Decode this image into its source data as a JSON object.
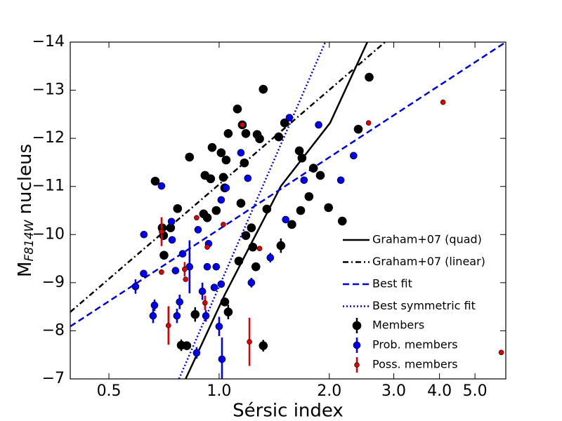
{
  "chart_data": {
    "type": "scatter",
    "xlabel": "Sérsic index",
    "ylabel": [
      "M",
      "F814W",
      "nucleus"
    ],
    "xscale": "log",
    "xlim": [
      0.392,
      6.07
    ],
    "ylim": [
      -7,
      -14
    ],
    "xticks": [
      0.5,
      {
        "value": 1,
        "label": "1.0"
      },
      {
        "value": 2,
        "label": "2.0"
      },
      {
        "value": 3,
        "label": "3.0"
      },
      {
        "value": 4,
        "label": "4.0"
      },
      {
        "value": 5,
        "label": "5.0"
      }
    ],
    "yticks": [
      {
        "value": -7,
        "label": "−7"
      },
      {
        "value": -8,
        "label": "−8"
      },
      {
        "value": -9,
        "label": "−9"
      },
      {
        "value": -10,
        "label": "−10"
      },
      {
        "value": -11,
        "label": "−11"
      },
      {
        "value": -12,
        "label": "−12"
      },
      {
        "value": -13,
        "label": "−13"
      },
      {
        "value": -14,
        "label": "−14"
      }
    ],
    "legend": "lower right",
    "lines": [
      {
        "name": "Graham+07 (quad)",
        "color": "#000000",
        "style": "solid",
        "x": [
          0.81,
          1.036,
          1.476,
          2.01,
          2.54
        ],
        "values": [
          -7,
          -8.75,
          -11.01,
          -12.32,
          -14
        ]
      },
      {
        "name": "Graham+07 (linear)",
        "color": "#000000",
        "style": "dashdot",
        "x": [
          0.392,
          2.84
        ],
        "values": [
          -8.39,
          -14
        ]
      },
      {
        "name": "Best fit",
        "color": "#0000dd",
        "style": "dashed",
        "x": [
          0.392,
          6.07
        ],
        "values": [
          -8.09,
          -14
        ]
      },
      {
        "name": "Best symmetric fit",
        "color": "#0000dd",
        "style": "dotted",
        "x": [
          0.777,
          1.95
        ],
        "values": [
          -7,
          -14
        ]
      }
    ],
    "series": [
      {
        "name": "Members",
        "color": "#000000",
        "size": 6,
        "x": [
          0.669,
          0.699,
          0.737,
          0.77,
          0.705,
          0.707,
          0.83,
          0.788,
          0.816,
          0.86,
          0.907,
          0.928,
          0.957,
          1.013,
          1.027,
          1.036,
          1.045,
          1.059,
          0.948,
          0.915,
          1.122,
          1.157,
          1.183,
          1.147,
          1.172,
          1.32,
          1.35,
          1.27,
          1.29,
          1.236,
          1.26,
          1.32,
          1.475,
          1.183,
          1.132,
          1.059,
          1.036,
          1.455,
          1.51,
          1.656,
          1.684,
          1.76,
          1.81,
          1.67,
          1.58,
          1.89,
          1.99,
          2.17,
          2.4,
          2.57,
          1.225,
          0.982
        ],
        "values": [
          -11.11,
          -10.14,
          -10.14,
          -10.54,
          -9.98,
          -9.57,
          -11.61,
          -7.7,
          -7.69,
          -8.34,
          -10.43,
          -10.35,
          -11.81,
          -11.7,
          -11.19,
          -10.97,
          -11.55,
          -12.1,
          -11.16,
          -11.23,
          -12.61,
          -12.28,
          -12.1,
          -10.65,
          -11.49,
          -13.02,
          -10.53,
          -12.08,
          -11.99,
          -9.74,
          -9.33,
          -7.69,
          -9.77,
          -9.98,
          -9.45,
          -8.39,
          -8.6,
          -12.03,
          -12.32,
          -11.74,
          -11.59,
          -10.79,
          -11.38,
          -10.5,
          -10.21,
          -11.23,
          -10.56,
          -10.28,
          -12.19,
          -13.27,
          -10.14,
          -10.5
        ],
        "errors": [
          null,
          null,
          null,
          null,
          null,
          null,
          null,
          0.12,
          null,
          0.15,
          null,
          null,
          null,
          null,
          null,
          null,
          null,
          null,
          null,
          null,
          null,
          null,
          null,
          null,
          null,
          null,
          null,
          null,
          null,
          null,
          null,
          0.12,
          0.15,
          null,
          null,
          0.15,
          null,
          null,
          null,
          null,
          null,
          null,
          null,
          null,
          null,
          null,
          null,
          null,
          null,
          null,
          null,
          null
        ]
      },
      {
        "name": "Prob. members",
        "color": "#0000ee",
        "size": 5,
        "x": [
          0.591,
          0.622,
          0.623,
          0.696,
          0.66,
          0.666,
          0.744,
          0.76,
          0.741,
          0.795,
          0.83,
          0.767,
          0.78,
          0.868,
          0.876,
          0.936,
          0.928,
          0.92,
          0.9,
          0.97,
          0.982,
          1.0,
          1.018,
          1.013,
          1.147,
          1.198,
          1.045,
          1.013,
          1.225,
          1.38,
          1.52,
          1.556,
          1.706,
          1.87,
          2.15,
          2.33
        ],
        "values": [
          -8.92,
          -9.19,
          -10.0,
          -11.01,
          -8.31,
          -8.53,
          -9.89,
          -9.25,
          -10.27,
          -9.6,
          -9.33,
          -8.31,
          -8.6,
          -7.54,
          -10.1,
          -9.81,
          -9.33,
          -8.31,
          -8.82,
          -8.9,
          -9.33,
          -8.09,
          -7.41,
          -8.97,
          -11.7,
          -11.17,
          -10.97,
          -10.72,
          -9.0,
          -9.52,
          -10.31,
          -12.43,
          -11.13,
          -12.28,
          -11.13,
          -11.64
        ],
        "errors": [
          0.15,
          null,
          null,
          null,
          0.15,
          0.12,
          null,
          null,
          null,
          null,
          0.55,
          0.15,
          0.15,
          0.12,
          null,
          null,
          null,
          0.12,
          0.18,
          null,
          null,
          0.2,
          0.45,
          null,
          null,
          null,
          null,
          null,
          0.1,
          0.1,
          null,
          null,
          null,
          null,
          null,
          null
        ]
      },
      {
        "name": "Poss. members",
        "color": "#dd0000",
        "size": 3.5,
        "x": [
          0.696,
          0.696,
          0.727,
          0.805,
          0.81,
          0.868,
          0.915,
          0.928,
          1.027,
          1.157,
          1.21,
          1.29,
          2.56,
          4.09,
          5.9
        ],
        "values": [
          -10.06,
          -9.22,
          -8.11,
          -9.28,
          -9.07,
          -10.35,
          -8.58,
          -9.74,
          -10.21,
          -12.28,
          -7.77,
          -9.71,
          -12.32,
          -12.75,
          -7.55
        ],
        "errors": [
          0.3,
          null,
          0.4,
          0.15,
          null,
          null,
          0.15,
          null,
          null,
          null,
          0.5,
          null,
          null,
          null,
          null
        ]
      }
    ]
  }
}
